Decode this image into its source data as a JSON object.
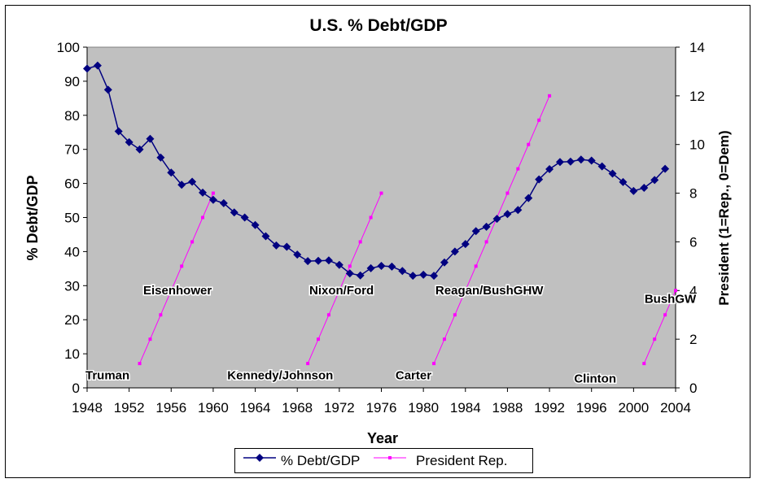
{
  "chart_data": {
    "type": "line",
    "title": "U.S. % Debt/GDP",
    "xlabel": "Year",
    "ylabel": "% Debt/GDP",
    "y2label": "President (1=Rep., 0=Dem)",
    "xlim": [
      1948,
      2004
    ],
    "ylim": [
      0,
      100
    ],
    "y2lim": [
      0,
      14
    ],
    "x_ticks": [
      1948,
      1952,
      1956,
      1960,
      1964,
      1968,
      1972,
      1976,
      1980,
      1984,
      1988,
      1992,
      1996,
      2000,
      2004
    ],
    "y_ticks": [
      0,
      10,
      20,
      30,
      40,
      50,
      60,
      70,
      80,
      90,
      100
    ],
    "y2_ticks": [
      0,
      2,
      4,
      6,
      8,
      10,
      12,
      14
    ],
    "colors": {
      "debt": "#000080",
      "president": "#ff00ff",
      "plot_bg": "#c0c0c0"
    },
    "series": [
      {
        "name": "% Debt/GDP",
        "axis": "left",
        "marker": "diamond",
        "x": [
          1948,
          1949,
          1950,
          1951,
          1952,
          1953,
          1954,
          1955,
          1956,
          1957,
          1958,
          1959,
          1960,
          1961,
          1962,
          1963,
          1964,
          1965,
          1966,
          1967,
          1968,
          1969,
          1970,
          1971,
          1972,
          1973,
          1974,
          1975,
          1976,
          1977,
          1978,
          1979,
          1980,
          1981,
          1982,
          1983,
          1984,
          1985,
          1986,
          1987,
          1988,
          1989,
          1990,
          1991,
          1992,
          1993,
          1994,
          1995,
          1996,
          1997,
          1998,
          1999,
          2000,
          2001,
          2002,
          2003
        ],
        "values": [
          93.7,
          94.6,
          87.5,
          75.3,
          72.1,
          70.0,
          73.1,
          67.6,
          63.2,
          59.6,
          60.5,
          57.3,
          55.2,
          54.2,
          51.5,
          50.0,
          47.8,
          44.5,
          41.8,
          41.4,
          39.1,
          37.2,
          37.3,
          37.4,
          36.1,
          33.6,
          33.0,
          35.1,
          35.8,
          35.6,
          34.3,
          32.9,
          33.2,
          32.9,
          36.8,
          40.0,
          42.2,
          46.0,
          47.3,
          49.6,
          51.0,
          52.2,
          55.7,
          61.2,
          64.2,
          66.3,
          66.4,
          67.0,
          66.7,
          65.0,
          62.9,
          60.4,
          57.8,
          58.7,
          61.0,
          64.3
        ]
      },
      {
        "name": "President Rep.",
        "axis": "right",
        "marker": "square",
        "segments": [
          {
            "x": [
              1953,
              1954,
              1955,
              1956,
              1957,
              1958,
              1959,
              1960
            ],
            "values": [
              1,
              2,
              3,
              4,
              5,
              6,
              7,
              8
            ]
          },
          {
            "x": [
              1969,
              1970,
              1971,
              1972,
              1973,
              1974,
              1975,
              1976
            ],
            "values": [
              1,
              2,
              3,
              4,
              5,
              6,
              7,
              8
            ]
          },
          {
            "x": [
              1981,
              1982,
              1983,
              1984,
              1985,
              1986,
              1987,
              1988,
              1989,
              1990,
              1991,
              1992
            ],
            "values": [
              1,
              2,
              3,
              4,
              5,
              6,
              7,
              8,
              9,
              10,
              11,
              12
            ]
          },
          {
            "x": [
              2001,
              2002,
              2003,
              2004
            ],
            "values": [
              1,
              2,
              3,
              4
            ]
          }
        ]
      }
    ],
    "annotations": [
      {
        "text": "Truman",
        "x": 1948,
        "y": 2.5
      },
      {
        "text": "Eisenhower",
        "x": 1953.5,
        "y": 27.5
      },
      {
        "text": "Kennedy/Johnson",
        "x": 1961.5,
        "y": 2.5
      },
      {
        "text": "Nixon/Ford",
        "x": 1969.3,
        "y": 27.5
      },
      {
        "text": "Carter",
        "x": 1977.5,
        "y": 2.5
      },
      {
        "text": "Reagan/BushGHW",
        "x": 1981.3,
        "y": 27.5
      },
      {
        "text": "Clinton",
        "x": 1994.5,
        "y": 1.5
      },
      {
        "text": "BushGW",
        "x": 2001.2,
        "y": 25
      }
    ],
    "legend": [
      "% Debt/GDP",
      "President Rep."
    ],
    "legend_position": "bottom-center",
    "grid": false
  }
}
